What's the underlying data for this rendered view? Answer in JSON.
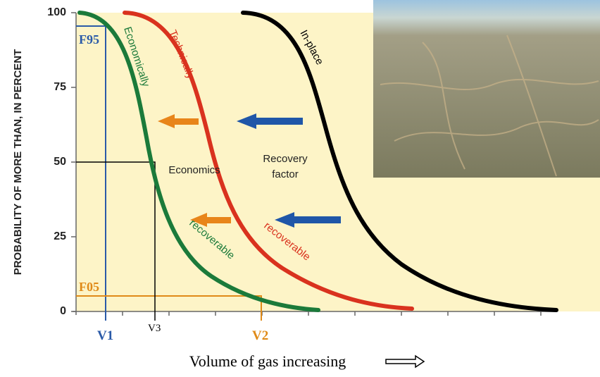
{
  "chart_data": {
    "type": "line",
    "ylabel": "PROBABILITY OF MORE THAN, IN PERCENT",
    "xlabel": "Volume of gas increasing",
    "ylim": [
      0,
      100
    ],
    "yticks": [
      0,
      25,
      50,
      75,
      100
    ],
    "curve_labels": {
      "economically": "Economically",
      "econ_recoverable": "recoverable",
      "technically": "Technically",
      "tech_recoverable": "recoverable",
      "in_place": "In-place"
    },
    "annotations": {
      "f95": "F95",
      "f05": "F05",
      "v1": "V1",
      "v2": "V2",
      "v3": "V3",
      "economics": "Economics",
      "recovery": "Recovery",
      "factor": "factor"
    }
  }
}
